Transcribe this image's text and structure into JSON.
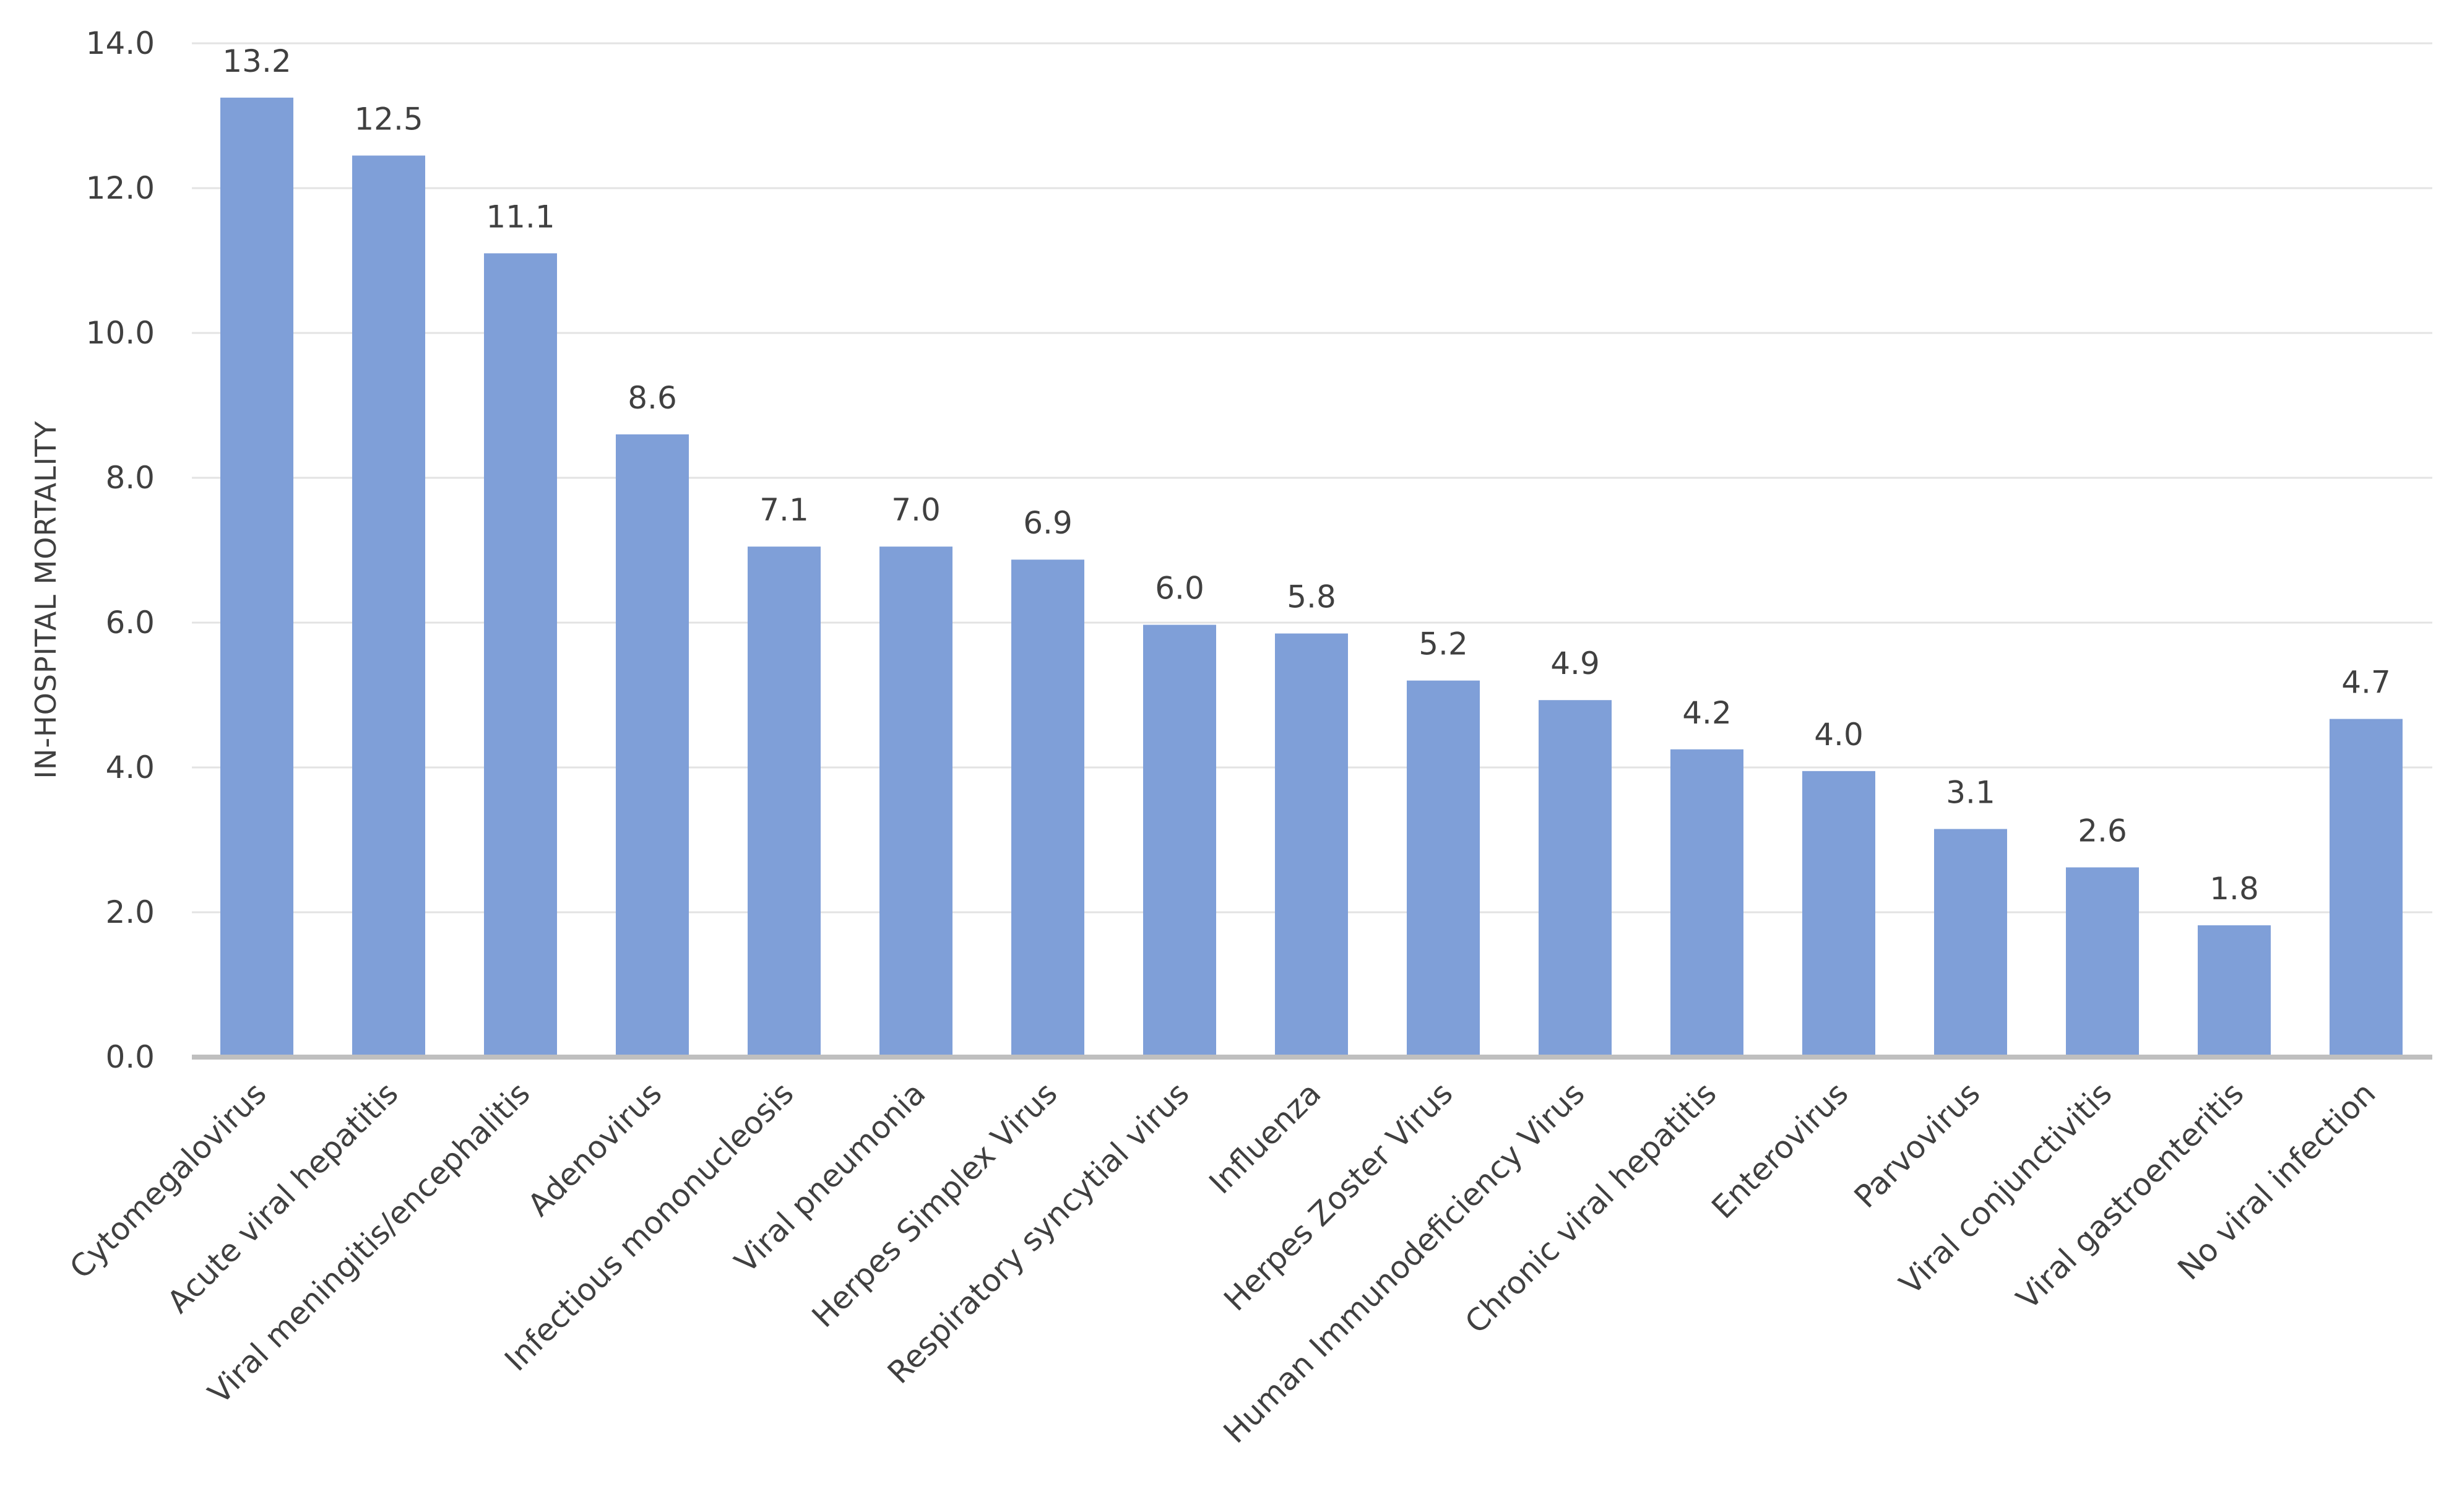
{
  "chart_data": {
    "type": "bar",
    "title": "",
    "xlabel": "",
    "ylabel": "IN-HOSPITAL MORTALITY",
    "ylim": [
      0,
      14
    ],
    "ytick_step": 2,
    "ytick_labels": [
      "0.0",
      "2.0",
      "4.0",
      "6.0",
      "8.0",
      "10.0",
      "12.0",
      "14.0"
    ],
    "grid": true,
    "legend": "none",
    "bar_color": "#7f9fd8",
    "categories": [
      "Cytomegalovirus",
      "Acute viral hepatitis",
      "Viral meningitis/encephalitis",
      "Adenovirus",
      "Infectious mononucleosis",
      "Viral pneumonia",
      "Herpes Simplex Virus",
      "Respiratory syncytial virus",
      "Influenza",
      "Herpes Zoster Virus",
      "Human Immunodeficiency Virus",
      "Chronic viral hepatitis",
      "Enterovirus",
      "Parvovirus",
      "Viral conjunctivitis",
      "Viral gastroenteritis",
      "No viral infection"
    ],
    "values": [
      13.25,
      12.45,
      11.1,
      8.6,
      7.05,
      7.05,
      6.87,
      5.97,
      5.85,
      5.2,
      4.93,
      4.25,
      3.95,
      3.15,
      2.62,
      1.82,
      4.67
    ],
    "data_labels": [
      "13.2",
      "12.5",
      "11.1",
      "8.6",
      "7.1",
      "7.0",
      "6.9",
      "6.0",
      "5.8",
      "5.2",
      "4.9",
      "4.2",
      "4.0",
      "3.1",
      "2.6",
      "1.8",
      "4.7"
    ]
  }
}
